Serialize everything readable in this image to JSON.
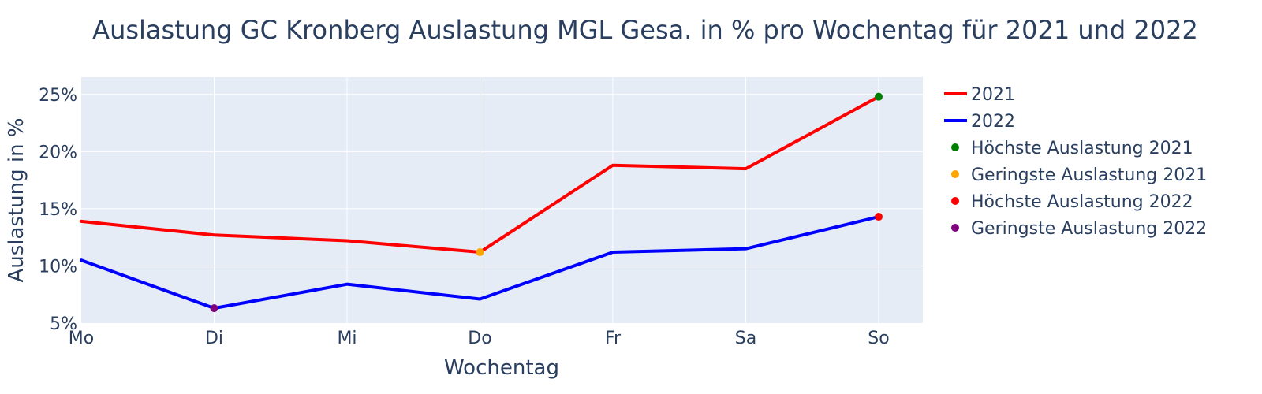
{
  "chart_data": {
    "type": "line",
    "title": "Auslastung GC Kronberg Auslastung MGL Gesa. in % pro Wochentag für 2021 und 2022",
    "xlabel": "Wochentag",
    "ylabel": "Auslastung in %",
    "categories": [
      "Mo",
      "Di",
      "Mi",
      "Do",
      "Fr",
      "Sa",
      "So"
    ],
    "ylim": [
      0.05,
      0.265
    ],
    "yticks": [
      0.05,
      0.1,
      0.15,
      0.2,
      0.25
    ],
    "ytick_labels": [
      "5%",
      "10%",
      "15%",
      "20%",
      "25%"
    ],
    "grid": true,
    "legend_position": "right",
    "series": [
      {
        "name": "2021",
        "mode": "line",
        "color": "#ff0000",
        "values": [
          0.139,
          0.127,
          0.122,
          0.112,
          0.188,
          0.185,
          0.248
        ]
      },
      {
        "name": "2022",
        "mode": "line",
        "color": "#0000ff",
        "values": [
          0.105,
          0.063,
          0.084,
          0.071,
          0.112,
          0.115,
          0.143
        ]
      }
    ],
    "markers": [
      {
        "name": "Höchste Auslastung 2021",
        "color": "#008000",
        "category": "So",
        "value": 0.248
      },
      {
        "name": "Geringste Auslastung 2021",
        "color": "#ffa500",
        "category": "Do",
        "value": 0.112
      },
      {
        "name": "Höchste Auslastung 2022",
        "color": "#ff0000",
        "category": "So",
        "value": 0.143
      },
      {
        "name": "Geringste Auslastung 2022",
        "color": "#800080",
        "category": "Di",
        "value": 0.063
      }
    ]
  }
}
